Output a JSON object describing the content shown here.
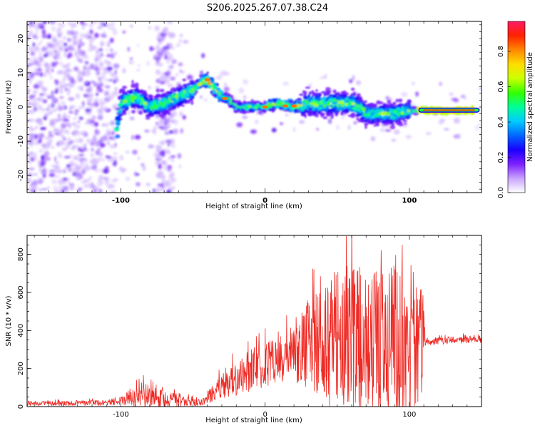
{
  "figure_title": "S206.2025.267.07.38.C24",
  "chart_data": [
    {
      "type": "heatmap",
      "xlabel": "Height of straight line (km)",
      "ylabel": "Frequency (Hz)",
      "xlim": [
        -165,
        150
      ],
      "ylim": [
        -25,
        25
      ],
      "xticks": [
        "-100",
        "0",
        "100"
      ],
      "yticks": [
        "-20",
        "-10",
        "0",
        "10",
        "20"
      ],
      "ridge": {
        "x": [
          -103,
          -100,
          -95,
          -90,
          -80,
          -70,
          -60,
          -50,
          -45,
          -40,
          -35,
          -30,
          -25,
          -20,
          -10,
          0,
          10,
          20,
          30,
          40,
          50,
          60,
          65,
          70,
          80,
          90,
          100,
          110,
          120,
          130,
          140,
          145
        ],
        "freq": [
          -8,
          1,
          2,
          3,
          0,
          1,
          3,
          5,
          7,
          8,
          5,
          3,
          2,
          0,
          0,
          0,
          1,
          0,
          1,
          1,
          1,
          1,
          0,
          -2,
          -2,
          -2,
          -1,
          -1,
          -1,
          -1,
          -1,
          -1
        ]
      },
      "colorbar": {
        "label": "Normalized spectral amplitude",
        "ticks": [
          "0.0",
          "0.2",
          "0.4",
          "0.6",
          "0.8"
        ],
        "range": [
          0,
          0.97
        ],
        "colors": [
          "#ffffff",
          "#c9a3ff",
          "#7d1fff",
          "#1a00ff",
          "#0066ff",
          "#00ccff",
          "#00ff99",
          "#33ff00",
          "#ccff00",
          "#ffdd00",
          "#ff8800",
          "#ff2200",
          "#ff1a66"
        ]
      }
    },
    {
      "type": "line",
      "xlabel": "Height of straight line (km)",
      "ylabel": "SNR (10 * v/v)",
      "xlim": [
        -165,
        150
      ],
      "ylim": [
        0,
        900
      ],
      "xticks": [
        "-100",
        "0",
        "100"
      ],
      "yticks": [
        "0",
        "200",
        "400",
        "600",
        "800"
      ],
      "line_color": "#ee2a24",
      "envelope": {
        "x": [
          -165,
          -110,
          -100,
          -85,
          -75,
          -60,
          -45,
          -40,
          -30,
          -20,
          -10,
          0,
          10,
          20,
          30,
          40,
          50,
          60,
          70,
          80,
          90,
          95,
          100,
          110,
          111,
          120,
          130,
          150
        ],
        "mean": [
          15,
          20,
          30,
          60,
          45,
          30,
          20,
          45,
          110,
          155,
          190,
          220,
          250,
          300,
          330,
          330,
          340,
          350,
          340,
          330,
          320,
          320,
          320,
          330,
          340,
          345,
          350,
          355
        ],
        "amplitude": [
          12,
          15,
          22,
          70,
          50,
          35,
          15,
          30,
          70,
          100,
          110,
          120,
          130,
          170,
          240,
          300,
          380,
          400,
          380,
          380,
          420,
          450,
          350,
          280,
          20,
          20,
          20,
          20
        ]
      }
    }
  ]
}
